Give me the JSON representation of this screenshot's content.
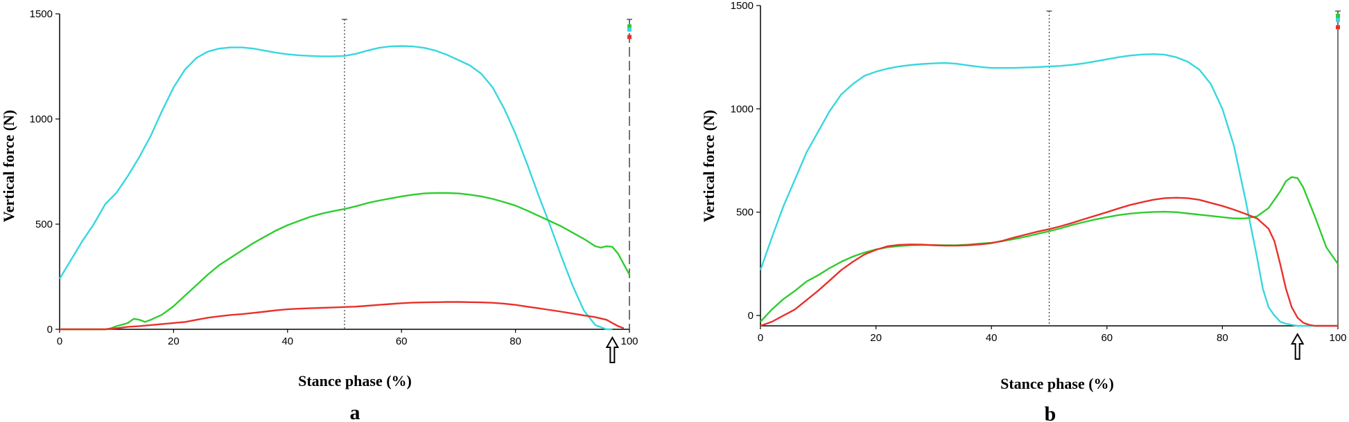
{
  "chart_data": [
    {
      "panel": "a",
      "type": "line",
      "xlabel": "Stance phase (%)",
      "ylabel": "Vertical force (N)",
      "xlim": [
        0,
        100
      ],
      "ylim": [
        0,
        1500
      ],
      "xticks": [
        0,
        20,
        40,
        60,
        80,
        100
      ],
      "yticks": [
        0,
        500,
        1000,
        1500
      ],
      "xtick_labels": [
        "0",
        "20",
        "40",
        "60",
        "80",
        "100"
      ],
      "ytick_labels": [
        "0",
        "500",
        "1000",
        "1500"
      ],
      "midline_x": 50,
      "endline_x": 100,
      "arrow_x": 97,
      "end_markers": [
        {
          "color": "#2ecc2e",
          "y": 1440
        },
        {
          "color": "#36d7df",
          "y": 1425
        },
        {
          "color": "#e8302a",
          "y": 1390
        }
      ],
      "series": [
        {
          "color": "#36d7df",
          "x": [
            0,
            2,
            4,
            6,
            8,
            10,
            12,
            14,
            16,
            18,
            20,
            22,
            24,
            26,
            28,
            30,
            32,
            34,
            36,
            38,
            40,
            42,
            44,
            46,
            48,
            50,
            52,
            54,
            56,
            58,
            60,
            62,
            64,
            66,
            68,
            70,
            72,
            74,
            76,
            78,
            80,
            82,
            84,
            86,
            88,
            90,
            92,
            94,
            96,
            97
          ],
          "y": [
            240,
            330,
            420,
            500,
            595,
            650,
            730,
            820,
            920,
            1040,
            1150,
            1235,
            1290,
            1320,
            1335,
            1340,
            1340,
            1335,
            1325,
            1315,
            1308,
            1303,
            1300,
            1298,
            1298,
            1300,
            1310,
            1325,
            1338,
            1345,
            1347,
            1345,
            1338,
            1325,
            1305,
            1280,
            1255,
            1215,
            1150,
            1050,
            930,
            790,
            640,
            500,
            350,
            210,
            90,
            20,
            0,
            0
          ]
        },
        {
          "color": "#2ecc2e",
          "x": [
            0,
            8,
            9,
            10,
            11,
            12,
            13,
            14,
            15,
            16,
            18,
            20,
            22,
            24,
            26,
            28,
            30,
            32,
            34,
            36,
            38,
            40,
            42,
            44,
            46,
            48,
            50,
            52,
            54,
            56,
            58,
            60,
            62,
            64,
            66,
            68,
            70,
            72,
            74,
            76,
            78,
            80,
            82,
            84,
            86,
            88,
            90,
            92,
            94,
            95,
            96,
            97,
            98,
            99,
            100
          ],
          "y": [
            0,
            0,
            5,
            15,
            22,
            30,
            50,
            45,
            35,
            45,
            70,
            110,
            160,
            210,
            260,
            305,
            340,
            375,
            410,
            440,
            470,
            495,
            515,
            535,
            550,
            562,
            572,
            585,
            600,
            612,
            622,
            632,
            640,
            646,
            648,
            648,
            646,
            640,
            632,
            620,
            605,
            588,
            565,
            540,
            515,
            490,
            460,
            430,
            395,
            388,
            395,
            392,
            360,
            310,
            260
          ]
        },
        {
          "color": "#e8302a",
          "x": [
            0,
            8,
            10,
            12,
            14,
            16,
            18,
            20,
            22,
            24,
            26,
            28,
            30,
            32,
            34,
            36,
            38,
            40,
            42,
            44,
            46,
            48,
            50,
            52,
            54,
            56,
            58,
            60,
            62,
            64,
            66,
            68,
            70,
            72,
            74,
            76,
            78,
            80,
            82,
            84,
            86,
            88,
            90,
            92,
            94,
            96,
            97,
            98,
            99
          ],
          "y": [
            0,
            0,
            5,
            12,
            15,
            20,
            25,
            30,
            35,
            45,
            55,
            62,
            68,
            72,
            78,
            84,
            90,
            95,
            98,
            100,
            102,
            104,
            106,
            108,
            112,
            116,
            120,
            124,
            127,
            128,
            129,
            130,
            130,
            129,
            128,
            126,
            122,
            116,
            108,
            100,
            92,
            84,
            75,
            66,
            58,
            45,
            30,
            15,
            5
          ]
        }
      ]
    },
    {
      "panel": "b",
      "type": "line",
      "xlabel": "Stance phase (%)",
      "ylabel": "Vertical force (N)",
      "xlim": [
        0,
        100
      ],
      "ylim": [
        -50,
        1500
      ],
      "xticks": [
        0,
        20,
        40,
        60,
        80,
        100
      ],
      "yticks": [
        0,
        500,
        1000,
        1500
      ],
      "xtick_labels": [
        "0",
        "20",
        "40",
        "60",
        "80",
        "100"
      ],
      "ytick_labels": [
        "0",
        "500",
        "1000",
        "1500"
      ],
      "midline_x": 50,
      "endline_x": 100,
      "arrow_x": 93,
      "end_markers": [
        {
          "color": "#2ecc2e",
          "y": 1450
        },
        {
          "color": "#36d7df",
          "y": 1430
        },
        {
          "color": "#e8302a",
          "y": 1395
        }
      ],
      "series": [
        {
          "color": "#36d7df",
          "x": [
            0,
            2,
            4,
            6,
            8,
            10,
            12,
            14,
            16,
            18,
            20,
            22,
            24,
            26,
            28,
            30,
            32,
            34,
            36,
            38,
            40,
            42,
            44,
            46,
            48,
            50,
            52,
            54,
            56,
            58,
            60,
            62,
            64,
            66,
            68,
            70,
            72,
            74,
            76,
            78,
            80,
            82,
            84,
            86,
            87,
            88,
            89,
            90,
            91,
            92,
            93,
            94,
            95,
            100
          ],
          "y": [
            220,
            380,
            530,
            660,
            790,
            890,
            990,
            1070,
            1120,
            1160,
            1180,
            1195,
            1205,
            1212,
            1217,
            1220,
            1222,
            1218,
            1210,
            1203,
            1198,
            1198,
            1198,
            1200,
            1202,
            1205,
            1208,
            1213,
            1220,
            1230,
            1240,
            1250,
            1258,
            1263,
            1265,
            1262,
            1250,
            1228,
            1190,
            1120,
            1000,
            820,
            560,
            280,
            130,
            40,
            0,
            -30,
            -40,
            -45,
            -50,
            -50,
            -50,
            -50
          ]
        },
        {
          "color": "#2ecc2e",
          "x": [
            0,
            2,
            4,
            6,
            8,
            10,
            12,
            14,
            16,
            18,
            20,
            22,
            24,
            26,
            28,
            30,
            32,
            34,
            36,
            38,
            40,
            42,
            44,
            46,
            48,
            50,
            52,
            54,
            56,
            58,
            60,
            62,
            64,
            66,
            68,
            70,
            72,
            74,
            76,
            78,
            80,
            82,
            84,
            86,
            88,
            90,
            91,
            92,
            93,
            94,
            96,
            98,
            100
          ],
          "y": [
            -30,
            30,
            80,
            120,
            165,
            195,
            230,
            260,
            285,
            305,
            320,
            330,
            336,
            340,
            341,
            341,
            340,
            340,
            343,
            348,
            352,
            360,
            370,
            382,
            395,
            408,
            422,
            438,
            452,
            465,
            476,
            486,
            493,
            498,
            501,
            502,
            500,
            494,
            488,
            482,
            476,
            470,
            470,
            480,
            520,
            600,
            650,
            670,
            665,
            620,
            480,
            330,
            250
          ]
        },
        {
          "color": "#e8302a",
          "x": [
            0,
            2,
            4,
            6,
            8,
            10,
            12,
            14,
            16,
            18,
            20,
            22,
            24,
            26,
            28,
            30,
            32,
            34,
            36,
            38,
            40,
            42,
            44,
            46,
            48,
            50,
            52,
            54,
            56,
            58,
            60,
            62,
            64,
            66,
            68,
            70,
            72,
            74,
            76,
            78,
            80,
            82,
            84,
            86,
            88,
            89,
            90,
            91,
            92,
            93,
            94,
            95,
            96,
            98,
            100
          ],
          "y": [
            -50,
            -30,
            0,
            30,
            75,
            120,
            170,
            220,
            260,
            295,
            318,
            335,
            342,
            344,
            343,
            340,
            338,
            338,
            340,
            344,
            350,
            362,
            378,
            392,
            406,
            418,
            432,
            448,
            466,
            483,
            500,
            518,
            535,
            548,
            560,
            568,
            570,
            568,
            560,
            545,
            530,
            512,
            492,
            470,
            420,
            360,
            250,
            130,
            40,
            -10,
            -35,
            -45,
            -50,
            -50,
            -50
          ]
        }
      ]
    }
  ]
}
